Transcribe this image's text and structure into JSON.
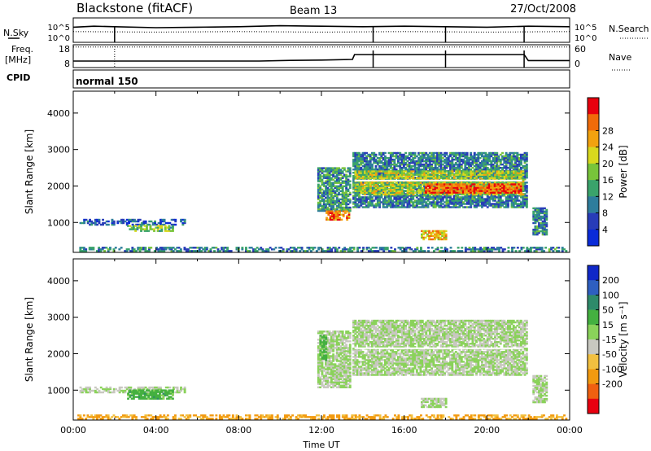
{
  "header": {
    "station": "Blackstone (fitACF)",
    "beam": "Beam 13",
    "date": "27/Oct/2008"
  },
  "side_labels": {
    "nsky": "N.Sky",
    "nsearch": "N.Search",
    "freq_line1": "Freq.",
    "freq_line2": "[MHz]",
    "nave": "Nave",
    "cpid": "CPID",
    "cpid_value": "normal 150"
  },
  "chart_data": [
    {
      "type": "line",
      "panel": "noise",
      "series": [
        {
          "name": "N.Sky",
          "style": "solid",
          "x": [
            0,
            1,
            2,
            4,
            6,
            8,
            10,
            12,
            14,
            16,
            18,
            20,
            22,
            24
          ],
          "y": [
            3.1,
            3.3,
            3.2,
            3.0,
            3.1,
            3.2,
            3.4,
            3.3,
            3.2,
            3.3,
            3.2,
            3.1,
            3.3,
            3.2
          ]
        },
        {
          "name": "N.Search",
          "style": "dotted",
          "x": [
            0,
            4,
            8,
            12,
            16,
            20,
            24
          ],
          "y": [
            2.2,
            2.1,
            2.2,
            2.1,
            2.2,
            2.1,
            2.2
          ]
        }
      ],
      "yticks_left": [
        "10^5",
        "10^0"
      ],
      "yticks_right": [
        "10^5",
        "10^0"
      ]
    },
    {
      "type": "line",
      "panel": "frequency",
      "series": [
        {
          "name": "Freq.",
          "style": "solid",
          "x": [
            0,
            6,
            9,
            10.5,
            12,
            13.5,
            13.6,
            21.8,
            22,
            24
          ],
          "y": [
            10.0,
            10.0,
            10.0,
            10.4,
            10.6,
            11.0,
            14.0,
            14.0,
            10.3,
            10.3
          ]
        },
        {
          "name": "Nave",
          "style": "dotted",
          "x": [
            0,
            24
          ],
          "y": [
            57,
            57
          ]
        }
      ],
      "yticks_left": [
        18,
        8
      ],
      "yticks_right": [
        60,
        0
      ]
    },
    {
      "type": "heatmap",
      "panel": "power",
      "ylabel": "Slant Range [km]",
      "xlim": [
        0,
        24
      ],
      "ylim": [
        180,
        4600
      ],
      "yticks": [
        1000,
        2000,
        3000,
        4000
      ],
      "colorbar_label": "Power [dB]",
      "colorbar_ticks": [
        4,
        8,
        12,
        16,
        20,
        24,
        28
      ],
      "colorbar_colors": [
        "#0a2bd8",
        "#283cb8",
        "#2e7d9c",
        "#3aa36b",
        "#78c43a",
        "#d8d81e",
        "#f2a20f",
        "#f06b0a",
        "#e8000e"
      ],
      "regions": [
        {
          "t0": 0.3,
          "t1": 5.4,
          "r0": 920,
          "r1": 1060,
          "level": 0.2
        },
        {
          "t0": 2.6,
          "t1": 4.8,
          "r0": 750,
          "r1": 900,
          "level": 0.5
        },
        {
          "t0": 0.2,
          "t1": 23.8,
          "r0": 200,
          "r1": 320,
          "level": 0.3
        },
        {
          "t0": 11.8,
          "t1": 13.4,
          "r0": 1300,
          "r1": 2500,
          "level": 0.35
        },
        {
          "t0": 12.2,
          "t1": 13.3,
          "r0": 1060,
          "r1": 1300,
          "level": 0.8
        },
        {
          "t0": 13.5,
          "t1": 21.9,
          "r0": 1400,
          "r1": 2900,
          "level": 0.3
        },
        {
          "t0": 13.6,
          "t1": 21.7,
          "r0": 1750,
          "r1": 2400,
          "level": 0.55
        },
        {
          "t0": 17.0,
          "t1": 21.6,
          "r0": 1800,
          "r1": 2050,
          "level": 0.85
        },
        {
          "t0": 16.8,
          "t1": 18.0,
          "r0": 520,
          "r1": 760,
          "level": 0.7
        },
        {
          "t0": 22.2,
          "t1": 22.9,
          "r0": 650,
          "r1": 1400,
          "level": 0.3
        }
      ]
    },
    {
      "type": "heatmap",
      "panel": "velocity",
      "xlabel": "Time UT",
      "ylabel": "Slant Range [km]",
      "xlim": [
        0,
        24
      ],
      "ylim": [
        180,
        4600
      ],
      "xticks": [
        "00:00",
        "04:00",
        "08:00",
        "12:00",
        "16:00",
        "20:00",
        "00:00"
      ],
      "yticks": [
        1000,
        2000,
        3000,
        4000
      ],
      "colorbar_label": "Velocity [m s⁻¹]",
      "colorbar_ticks": [
        200,
        100,
        50,
        15,
        -15,
        -50,
        -100,
        -200
      ],
      "colorbar_colors": [
        "#1028c8",
        "#2e5fc0",
        "#2e8a6a",
        "#44b040",
        "#8ad25a",
        "#c8c8c0",
        "#f2c040",
        "#f29a10",
        "#f06010",
        "#e80010"
      ],
      "regions": [
        {
          "t0": 0.3,
          "t1": 5.4,
          "r0": 920,
          "r1": 1080,
          "level": 0.5
        },
        {
          "t0": 2.6,
          "t1": 4.8,
          "r0": 750,
          "r1": 1000,
          "level": 0.35
        },
        {
          "t0": 0.2,
          "t1": 23.8,
          "r0": 200,
          "r1": 320,
          "level": 0.72
        },
        {
          "t0": 11.8,
          "t1": 13.4,
          "r0": 1060,
          "r1": 2600,
          "level": 0.5
        },
        {
          "t0": 11.9,
          "t1": 12.2,
          "r0": 1800,
          "r1": 2500,
          "level": 0.38
        },
        {
          "t0": 13.5,
          "t1": 21.9,
          "r0": 1400,
          "r1": 2900,
          "level": 0.5
        },
        {
          "t0": 16.8,
          "t1": 18.0,
          "r0": 520,
          "r1": 760,
          "level": 0.5
        },
        {
          "t0": 22.2,
          "t1": 22.9,
          "r0": 650,
          "r1": 1400,
          "level": 0.5
        }
      ]
    }
  ]
}
